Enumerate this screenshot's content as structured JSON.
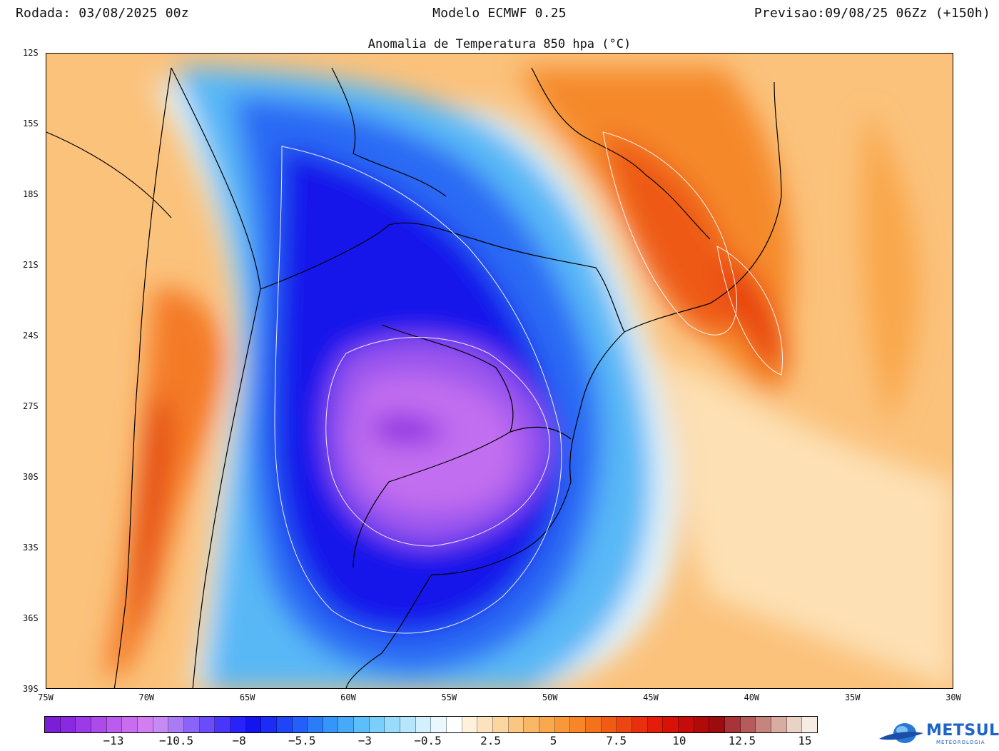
{
  "header": {
    "run": "Rodada: 03/08/2025 00z",
    "model": "Modelo ECMWF 0.25",
    "forecast": "Previsao:09/08/25 06Zz (+150h)"
  },
  "map": {
    "title": "Anomalia de Temperatura 850 hpa (°C)",
    "lat_labels": [
      "12S",
      "15S",
      "18S",
      "21S",
      "24S",
      "27S",
      "30S",
      "33S",
      "36S",
      "39S"
    ],
    "lon_labels": [
      "75W",
      "70W",
      "65W",
      "60W",
      "55W",
      "50W",
      "45W",
      "40W",
      "35W",
      "30W"
    ],
    "extent": {
      "lon_min": -75,
      "lon_max": -30,
      "lat_min": -39,
      "lat_max": -12
    }
  },
  "colorbar": {
    "labels": [
      "−13",
      "−10.5",
      "−8",
      "−5.5",
      "−3",
      "−0.5",
      "2.5",
      "5",
      "7.5",
      "10",
      "12.5",
      "15"
    ],
    "colors": [
      "#7a1fd6",
      "#8a2ae0",
      "#9b3ae6",
      "#ac4aea",
      "#bc5cee",
      "#c96cf0",
      "#d27df2",
      "#c78af4",
      "#a97cf6",
      "#8a64f8",
      "#6b4cfa",
      "#4a36fb",
      "#2a22fb",
      "#1414f0",
      "#1a2cf6",
      "#1f45f8",
      "#2460f8",
      "#2b7cf8",
      "#3695f8",
      "#46aaf8",
      "#5dbff9",
      "#79cffa",
      "#98dbfb",
      "#b5e6fc",
      "#d2f0fd",
      "#eaf8fe",
      "#ffffff",
      "#fff1dc",
      "#fde4bf",
      "#fcd6a0",
      "#fbc681",
      "#fab766",
      "#f9a84e",
      "#f8983a",
      "#f68628",
      "#f3721c",
      "#f05c16",
      "#ec4612",
      "#e8300e",
      "#e41c0a",
      "#d91208",
      "#c60c08",
      "#b00a0a",
      "#9a0c0e",
      "#a8343a",
      "#b65a5c",
      "#c6847f",
      "#d8aca2",
      "#e9d2c6",
      "#f6ece4"
    ],
    "label_segment_index": [
      7,
      12,
      17,
      22,
      27,
      32,
      38,
      43,
      48,
      53,
      58,
      63
    ]
  },
  "logo": {
    "name": "METSUL",
    "tagline": "METEOROLOGIA"
  }
}
